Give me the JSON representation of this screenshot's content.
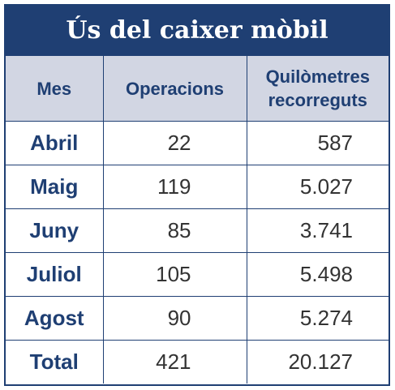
{
  "chart_data": {
    "type": "table",
    "title": "Ús del caixer mòbil",
    "columns": [
      "Mes",
      "Operacions",
      "Quilòmetres recorreguts"
    ],
    "rows": [
      {
        "month": "Abril",
        "operations": "22",
        "km": "587"
      },
      {
        "month": "Maig",
        "operations": "119",
        "km": "5.027"
      },
      {
        "month": "Juny",
        "operations": "85",
        "km": "3.741"
      },
      {
        "month": "Juliol",
        "operations": "105",
        "km": "5.498"
      },
      {
        "month": "Agost",
        "operations": "90",
        "km": "5.274"
      },
      {
        "month": "Total",
        "operations": "421",
        "km": "20.127"
      }
    ],
    "colors": {
      "header_bg": "#1f3f73",
      "column_header_bg": "#d2d6e3",
      "accent_text": "#1f3f73"
    }
  }
}
